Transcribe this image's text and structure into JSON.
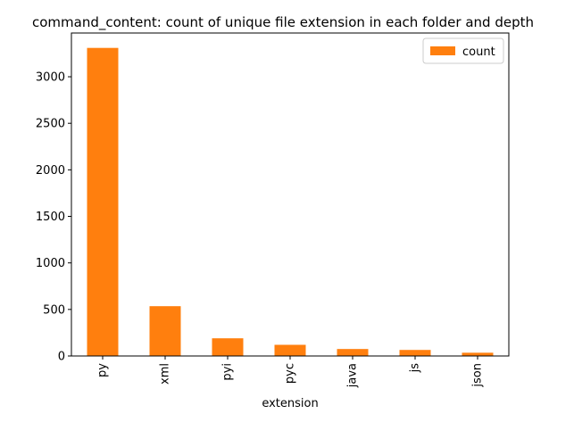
{
  "chart_data": {
    "type": "bar",
    "title": "command_content: count of unique file extension in each folder and depth",
    "xlabel": "extension",
    "ylabel": "",
    "categories": [
      "py",
      "xml",
      "pyi",
      "pyc",
      "java",
      "js",
      "json"
    ],
    "series": [
      {
        "name": "count",
        "values": [
          3310,
          535,
          190,
          120,
          75,
          65,
          35
        ],
        "color": "#ff7f0e"
      }
    ],
    "ylim": [
      0,
      3470
    ],
    "yticks": [
      0,
      500,
      1000,
      1500,
      2000,
      2500,
      3000
    ],
    "grid": false,
    "legend_position": "top-right"
  }
}
